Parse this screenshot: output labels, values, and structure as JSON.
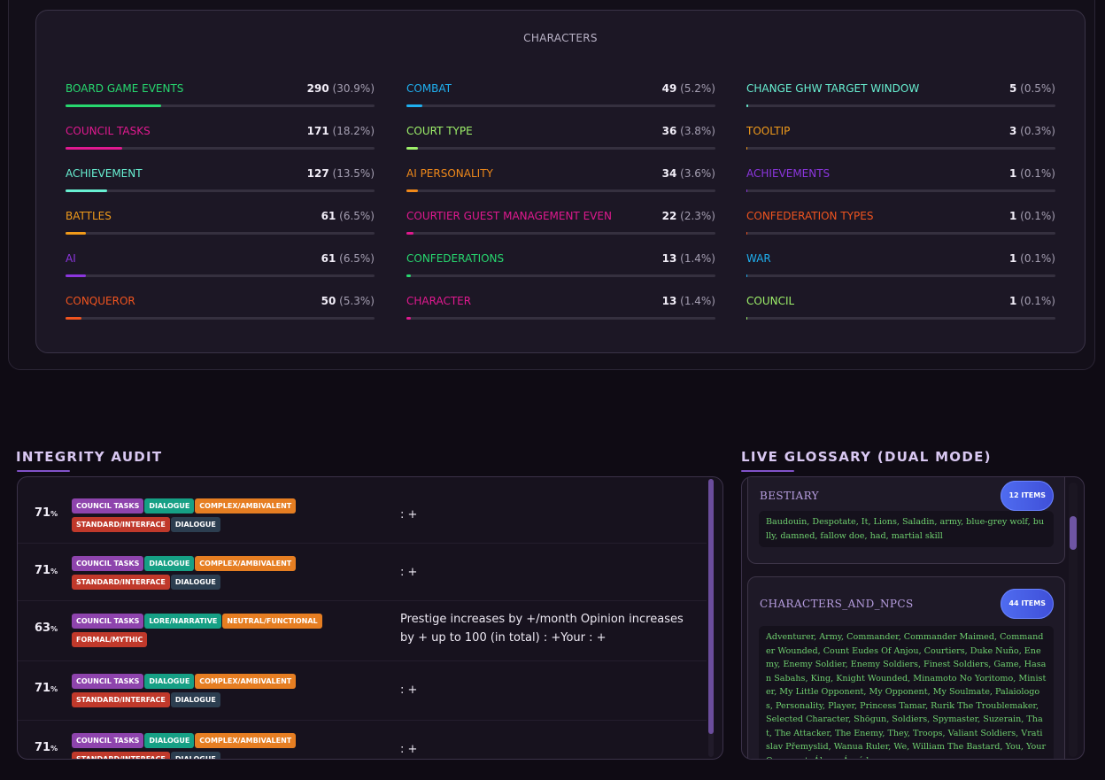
{
  "characters": {
    "title": "CHARACTERS",
    "columns": [
      [
        {
          "label": "BOARD GAME EVENTS",
          "count": "290",
          "percent": "(30.9%)",
          "fraction": 0.309,
          "color": "#27d86f"
        },
        {
          "label": "COUNCIL TASKS",
          "count": "171",
          "percent": "(18.2%)",
          "fraction": 0.182,
          "color": "#e0198f"
        },
        {
          "label": "ACHIEVEMENT",
          "count": "127",
          "percent": "(13.5%)",
          "fraction": 0.135,
          "color": "#68f0d2"
        },
        {
          "label": "BATTLES",
          "count": "61",
          "percent": "(6.5%)",
          "fraction": 0.065,
          "color": "#f09a1a"
        },
        {
          "label": "AI",
          "count": "61",
          "percent": "(6.5%)",
          "fraction": 0.065,
          "color": "#8c36de"
        },
        {
          "label": "CONQUEROR",
          "count": "50",
          "percent": "(5.3%)",
          "fraction": 0.053,
          "color": "#f0541f"
        }
      ],
      [
        {
          "label": "COMBAT",
          "count": "49",
          "percent": "(5.2%)",
          "fraction": 0.052,
          "color": "#1fb0f0"
        },
        {
          "label": "COURT TYPE",
          "count": "36",
          "percent": "(3.8%)",
          "fraction": 0.038,
          "color": "#9ef06a"
        },
        {
          "label": "AI PERSONALITY",
          "count": "34",
          "percent": "(3.6%)",
          "fraction": 0.036,
          "color": "#f0891a"
        },
        {
          "label": "COURTIER GUEST MANAGEMENT EVEN",
          "count": "22",
          "percent": "(2.3%)",
          "fraction": 0.023,
          "color": "#e0198f"
        },
        {
          "label": "CONFEDERATIONS",
          "count": "13",
          "percent": "(1.4%)",
          "fraction": 0.014,
          "color": "#27d86f"
        },
        {
          "label": "CHARACTER",
          "count": "13",
          "percent": "(1.4%)",
          "fraction": 0.014,
          "color": "#e0198f"
        }
      ],
      [
        {
          "label": "CHANGE GHW TARGET WINDOW",
          "count": "5",
          "percent": "(0.5%)",
          "fraction": 0.005,
          "color": "#68f0d2"
        },
        {
          "label": "TOOLTIP",
          "count": "3",
          "percent": "(0.3%)",
          "fraction": 0.003,
          "color": "#f09a1a"
        },
        {
          "label": "ACHIEVEMENTS",
          "count": "1",
          "percent": "(0.1%)",
          "fraction": 0.001,
          "color": "#8c36de"
        },
        {
          "label": "CONFEDERATION TYPES",
          "count": "1",
          "percent": "(0.1%)",
          "fraction": 0.001,
          "color": "#f0541f"
        },
        {
          "label": "WAR",
          "count": "1",
          "percent": "(0.1%)",
          "fraction": 0.001,
          "color": "#1fb0f0"
        },
        {
          "label": "COUNCIL",
          "count": "1",
          "percent": "(0.1%)",
          "fraction": 0.001,
          "color": "#9ef06a"
        }
      ]
    ]
  },
  "audit": {
    "heading": "INTEGRITY AUDIT",
    "rows": [
      {
        "score": "71",
        "unit": "%",
        "tags": [
          [
            {
              "text": "COUNCIL TASKS",
              "color": "#8e44ad"
            },
            {
              "text": "DIALOGUE",
              "color": "#16a085"
            },
            {
              "text": "COMPLEX/AMBIVALENT",
              "color": "#e67e22"
            }
          ],
          [
            {
              "text": "STANDARD/INTERFACE",
              "color": "#c0392b"
            },
            {
              "text": "DIALOGUE",
              "color": "#2c3e50"
            }
          ]
        ],
        "text": ": +"
      },
      {
        "score": "71",
        "unit": "%",
        "tags": [
          [
            {
              "text": "COUNCIL TASKS",
              "color": "#8e44ad"
            },
            {
              "text": "DIALOGUE",
              "color": "#16a085"
            },
            {
              "text": "COMPLEX/AMBIVALENT",
              "color": "#e67e22"
            }
          ],
          [
            {
              "text": "STANDARD/INTERFACE",
              "color": "#c0392b"
            },
            {
              "text": "DIALOGUE",
              "color": "#2c3e50"
            }
          ]
        ],
        "text": ": +"
      },
      {
        "score": "63",
        "unit": "%",
        "tags": [
          [
            {
              "text": "COUNCIL TASKS",
              "color": "#8e44ad"
            },
            {
              "text": "LORE/NARRATIVE",
              "color": "#16a085"
            },
            {
              "text": "NEUTRAL/FUNCTIONAL",
              "color": "#e67e22"
            }
          ],
          [
            {
              "text": "FORMAL/MYTHIC",
              "color": "#c0392b"
            }
          ]
        ],
        "text": "Prestige increases by +/month Opinion increases by + up to 100 (in total) : +Your : +"
      },
      {
        "score": "71",
        "unit": "%",
        "tags": [
          [
            {
              "text": "COUNCIL TASKS",
              "color": "#8e44ad"
            },
            {
              "text": "DIALOGUE",
              "color": "#16a085"
            },
            {
              "text": "COMPLEX/AMBIVALENT",
              "color": "#e67e22"
            }
          ],
          [
            {
              "text": "STANDARD/INTERFACE",
              "color": "#c0392b"
            },
            {
              "text": "DIALOGUE",
              "color": "#2c3e50"
            }
          ]
        ],
        "text": ": +"
      },
      {
        "score": "71",
        "unit": "%",
        "tags": [
          [
            {
              "text": "COUNCIL TASKS",
              "color": "#8e44ad"
            },
            {
              "text": "DIALOGUE",
              "color": "#16a085"
            },
            {
              "text": "COMPLEX/AMBIVALENT",
              "color": "#e67e22"
            }
          ],
          [
            {
              "text": "STANDARD/INTERFACE",
              "color": "#c0392b"
            },
            {
              "text": "DIALOGUE",
              "color": "#2c3e50"
            }
          ]
        ],
        "text": ": +"
      }
    ]
  },
  "glossary": {
    "heading": "LIVE GLOSSARY (DUAL MODE)",
    "cards": [
      {
        "title": "BESTIARY",
        "badge": "12 ITEMS",
        "terms": "Baudouin, Despotate, It, Lions, Saladin, army, blue-grey wolf, bully, damned, fallow doe, had, martial skill"
      },
      {
        "title": "CHARACTERS_AND_NPCS",
        "badge": "44 ITEMS",
        "terms": "Adventurer, Army, Commander, Commander Maimed, Commander Wounded, Count Eudes Of Anjou, Courtiers, Duke Nuño, Enemy, Enemy Soldier, Enemy Soldiers, Finest Soldiers, Game, Hasan Sabahs, King, Knight Wounded, Minamoto No Yoritomo, Minister, My Little Opponent, My Opponent, My Soulmate, Palaiologos, Personality, Player, Princess Tamar, Rurik The Troublemaker, Selected Character, Shōgun, Soldiers, Spymaster, Suzerain, That, The Attacker, The Enemy, They, Troops, Valiant Soldiers, Vratislav Přemyslid, Wanua Ruler, We, William The Bastard, You, Your Opponent, Álmos Árpád"
      }
    ]
  }
}
